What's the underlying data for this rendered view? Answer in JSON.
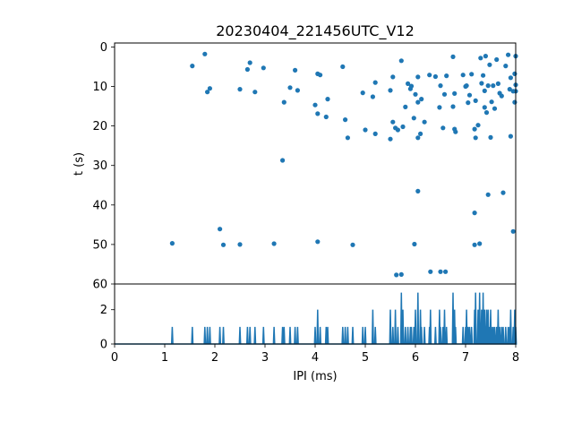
{
  "chart_data": [
    {
      "type": "scatter",
      "panel": "top",
      "title": "20230404_221456UTC_V12",
      "xlabel": "",
      "ylabel": "t (s)",
      "xlim": [
        0,
        8
      ],
      "ylim": [
        60,
        -1
      ],
      "y_inverted": true,
      "yticks": [
        "0",
        "10",
        "20",
        "30",
        "40",
        "50",
        "60"
      ],
      "marker_color": "#1f77b4",
      "points": [
        [
          1.55,
          4.8
        ],
        [
          1.8,
          1.8
        ],
        [
          1.85,
          11.4
        ],
        [
          1.9,
          10.5
        ],
        [
          2.5,
          10.7
        ],
        [
          2.65,
          5.7
        ],
        [
          2.7,
          4.0
        ],
        [
          2.8,
          11.4
        ],
        [
          2.97,
          5.3
        ],
        [
          3.38,
          14.0
        ],
        [
          3.5,
          10.3
        ],
        [
          3.6,
          5.9
        ],
        [
          3.65,
          11.0
        ],
        [
          4.0,
          14.7
        ],
        [
          4.05,
          6.8
        ],
        [
          4.1,
          7.1
        ],
        [
          4.05,
          16.9
        ],
        [
          4.25,
          13.2
        ],
        [
          4.22,
          17.7
        ],
        [
          4.55,
          5.0
        ],
        [
          4.6,
          18.4
        ],
        [
          4.65,
          23.0
        ],
        [
          4.95,
          11.6
        ],
        [
          5.0,
          21.0
        ],
        [
          5.15,
          12.6
        ],
        [
          5.2,
          9.0
        ],
        [
          5.2,
          22.0
        ],
        [
          5.5,
          11.0
        ],
        [
          5.5,
          23.3
        ],
        [
          5.55,
          7.6
        ],
        [
          5.55,
          19.0
        ],
        [
          5.6,
          20.5
        ],
        [
          5.65,
          21.0
        ],
        [
          5.72,
          3.5
        ],
        [
          5.75,
          20.2
        ],
        [
          5.8,
          15.2
        ],
        [
          5.85,
          9.3
        ],
        [
          5.9,
          10.6
        ],
        [
          5.92,
          9.9
        ],
        [
          5.97,
          18.0
        ],
        [
          6.0,
          12.0
        ],
        [
          6.05,
          14.0
        ],
        [
          6.05,
          7.6
        ],
        [
          6.05,
          23.0
        ],
        [
          6.1,
          22.0
        ],
        [
          6.12,
          13.2
        ],
        [
          6.18,
          19.0
        ],
        [
          6.28,
          7.1
        ],
        [
          6.4,
          7.5
        ],
        [
          6.48,
          15.3
        ],
        [
          6.5,
          9.8
        ],
        [
          6.55,
          20.5
        ],
        [
          6.58,
          12.0
        ],
        [
          6.62,
          7.3
        ],
        [
          6.75,
          2.5
        ],
        [
          6.78,
          11.8
        ],
        [
          6.78,
          20.8
        ],
        [
          6.8,
          21.5
        ],
        [
          6.75,
          15.1
        ],
        [
          6.95,
          7.1
        ],
        [
          7.0,
          10.0
        ],
        [
          7.02,
          9.8
        ],
        [
          7.05,
          14.1
        ],
        [
          7.08,
          12.2
        ],
        [
          7.12,
          6.9
        ],
        [
          7.18,
          20.8
        ],
        [
          7.2,
          23.0
        ],
        [
          7.2,
          13.6
        ],
        [
          7.25,
          19.8
        ],
        [
          7.3,
          2.8
        ],
        [
          7.32,
          9.2
        ],
        [
          7.35,
          7.2
        ],
        [
          7.38,
          11.1
        ],
        [
          7.38,
          15.3
        ],
        [
          7.4,
          2.3
        ],
        [
          7.42,
          16.6
        ],
        [
          7.45,
          9.8
        ],
        [
          7.48,
          4.5
        ],
        [
          7.5,
          22.9
        ],
        [
          7.52,
          13.9
        ],
        [
          7.55,
          9.8
        ],
        [
          7.58,
          15.6
        ],
        [
          7.62,
          3.2
        ],
        [
          7.65,
          9.3
        ],
        [
          7.68,
          11.7
        ],
        [
          7.72,
          12.4
        ],
        [
          7.8,
          4.8
        ],
        [
          7.85,
          2.0
        ],
        [
          7.88,
          10.7
        ],
        [
          7.9,
          22.6
        ],
        [
          7.9,
          7.8
        ],
        [
          7.95,
          11.2
        ],
        [
          7.98,
          6.8
        ],
        [
          7.98,
          14.0
        ],
        [
          8.0,
          2.3
        ],
        [
          8.0,
          9.6
        ],
        [
          8.0,
          11.2
        ],
        [
          3.35,
          28.7
        ],
        [
          2.1,
          46.1
        ],
        [
          2.17,
          50.1
        ],
        [
          2.5,
          50.0
        ],
        [
          3.18,
          49.8
        ],
        [
          1.15,
          49.7
        ],
        [
          4.05,
          49.3
        ],
        [
          4.75,
          50.1
        ],
        [
          5.98,
          49.9
        ],
        [
          6.05,
          36.5
        ],
        [
          7.18,
          50.1
        ],
        [
          7.28,
          49.8
        ],
        [
          7.18,
          42.0
        ],
        [
          7.45,
          37.4
        ],
        [
          7.75,
          36.9
        ],
        [
          7.95,
          46.7
        ],
        [
          5.62,
          57.7
        ],
        [
          5.72,
          57.6
        ],
        [
          6.3,
          56.9
        ],
        [
          6.5,
          56.9
        ],
        [
          6.6,
          56.9
        ]
      ]
    },
    {
      "type": "line",
      "panel": "bottom",
      "xlabel": "IPI (ms)",
      "ylabel": "",
      "xlim": [
        0,
        8
      ],
      "ylim": [
        0,
        3.5
      ],
      "xticks": [
        "0",
        "1",
        "2",
        "3",
        "4",
        "5",
        "6",
        "7",
        "8"
      ],
      "yticks": [
        "0",
        "2"
      ],
      "line_color": "#1f77b4",
      "spikes": [
        [
          1.15,
          1
        ],
        [
          1.55,
          1
        ],
        [
          1.8,
          1
        ],
        [
          1.85,
          1
        ],
        [
          1.9,
          1
        ],
        [
          2.1,
          1
        ],
        [
          2.17,
          1
        ],
        [
          2.5,
          1
        ],
        [
          2.65,
          1
        ],
        [
          2.7,
          1
        ],
        [
          2.8,
          1
        ],
        [
          2.97,
          1
        ],
        [
          3.18,
          1
        ],
        [
          3.35,
          1
        ],
        [
          3.38,
          1
        ],
        [
          3.5,
          1
        ],
        [
          3.6,
          1
        ],
        [
          3.65,
          1
        ],
        [
          4.0,
          1
        ],
        [
          4.05,
          2
        ],
        [
          4.1,
          1
        ],
        [
          4.22,
          1
        ],
        [
          4.25,
          1
        ],
        [
          4.55,
          1
        ],
        [
          4.6,
          1
        ],
        [
          4.65,
          1
        ],
        [
          4.75,
          1
        ],
        [
          4.95,
          1
        ],
        [
          5.0,
          1
        ],
        [
          5.15,
          2
        ],
        [
          5.2,
          1
        ],
        [
          5.5,
          2
        ],
        [
          5.55,
          1
        ],
        [
          5.6,
          2
        ],
        [
          5.65,
          1
        ],
        [
          5.72,
          3
        ],
        [
          5.75,
          2
        ],
        [
          5.8,
          1
        ],
        [
          5.85,
          1
        ],
        [
          5.9,
          1
        ],
        [
          5.92,
          1
        ],
        [
          5.97,
          1
        ],
        [
          6.0,
          2
        ],
        [
          6.05,
          3
        ],
        [
          6.1,
          2
        ],
        [
          6.12,
          1
        ],
        [
          6.18,
          1
        ],
        [
          6.28,
          1
        ],
        [
          6.3,
          2
        ],
        [
          6.4,
          1
        ],
        [
          6.48,
          2
        ],
        [
          6.5,
          1
        ],
        [
          6.55,
          1
        ],
        [
          6.58,
          2
        ],
        [
          6.62,
          1
        ],
        [
          6.75,
          3
        ],
        [
          6.78,
          2
        ],
        [
          6.8,
          1
        ],
        [
          6.95,
          1
        ],
        [
          7.0,
          1
        ],
        [
          7.02,
          2
        ],
        [
          7.05,
          1
        ],
        [
          7.08,
          1
        ],
        [
          7.12,
          1
        ],
        [
          7.18,
          2
        ],
        [
          7.2,
          3
        ],
        [
          7.25,
          2
        ],
        [
          7.28,
          3
        ],
        [
          7.3,
          1
        ],
        [
          7.32,
          2
        ],
        [
          7.35,
          3
        ],
        [
          7.38,
          2
        ],
        [
          7.4,
          1
        ],
        [
          7.42,
          2
        ],
        [
          7.45,
          2
        ],
        [
          7.48,
          1
        ],
        [
          7.5,
          2
        ],
        [
          7.52,
          1
        ],
        [
          7.55,
          1
        ],
        [
          7.58,
          1
        ],
        [
          7.62,
          1
        ],
        [
          7.65,
          2
        ],
        [
          7.68,
          1
        ],
        [
          7.72,
          1
        ],
        [
          7.75,
          1
        ],
        [
          7.8,
          1
        ],
        [
          7.85,
          1
        ],
        [
          7.88,
          1
        ],
        [
          7.9,
          2
        ],
        [
          7.95,
          1
        ],
        [
          7.98,
          2
        ],
        [
          8.0,
          1
        ]
      ]
    }
  ]
}
